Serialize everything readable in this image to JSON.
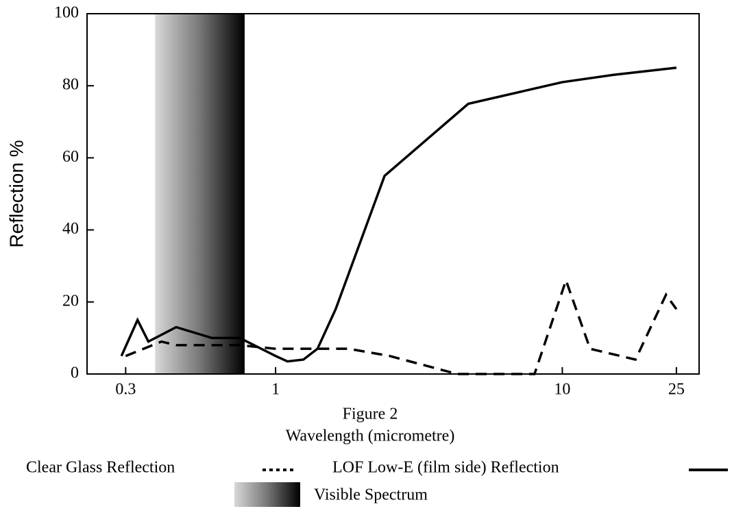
{
  "chart_data": {
    "type": "line",
    "title": "Figure 2",
    "x_label": "Wavelength (micrometre)",
    "y_label": "Reflection %",
    "x_log": true,
    "xlim": [
      0.22,
      30
    ],
    "xticks": [
      0.3,
      1,
      10,
      25
    ],
    "ylim": [
      0,
      100
    ],
    "yticks": [
      0,
      20,
      40,
      60,
      80,
      100
    ],
    "band": {
      "name": "Visible Spectrum",
      "range": [
        0.38,
        0.78
      ]
    },
    "series": [
      {
        "name": "Clear Glass Reflection",
        "style": "dashed",
        "color": "#000000",
        "x": [
          0.3,
          0.4,
          0.45,
          0.75,
          1.0,
          1.8,
          2.5,
          4.3,
          8.0,
          10.3,
          12.5,
          18,
          23,
          25
        ],
        "values": [
          5,
          9,
          8,
          8,
          7,
          7,
          5,
          0,
          0,
          26,
          7,
          4,
          22,
          18
        ]
      },
      {
        "name": "LOF Low-E (film side) Reflection",
        "style": "solid",
        "color": "#000000",
        "x": [
          0.29,
          0.33,
          0.36,
          0.45,
          0.6,
          0.75,
          1.0,
          1.1,
          1.25,
          1.4,
          1.62,
          2.4,
          4.7,
          10,
          15,
          25
        ],
        "values": [
          5,
          15,
          9,
          13,
          10,
          10,
          5,
          3.5,
          4,
          7,
          18,
          55,
          75,
          81,
          83,
          85
        ]
      }
    ]
  }
}
